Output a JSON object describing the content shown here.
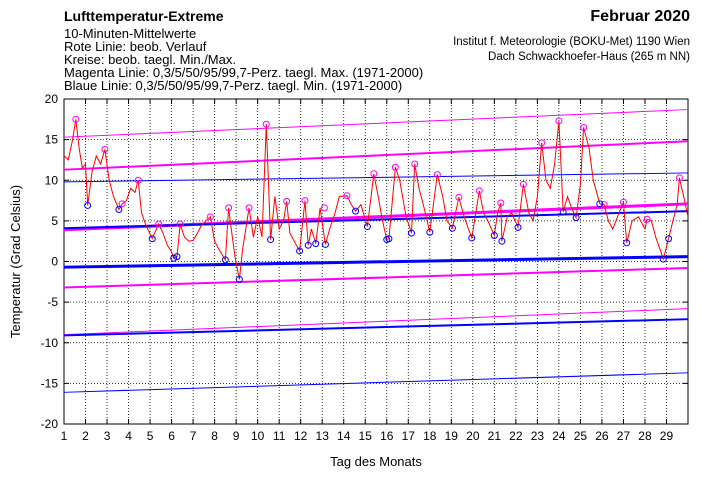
{
  "header": {
    "title": "Lufttemperatur-Extreme",
    "line1": "10-Minuten-Mittelwerte",
    "line2": "Rote Linie: beob. Verlauf",
    "line3": "Kreise: beob. taegl. Min./Max.",
    "line4": "Magenta Linie: 0,3/5/50/95/99,7-Perz. taegl. Max. (1971-2000)",
    "line5": "Blaue Linie: 0,3/5/50/95/99,7-Perz. taegl. Min. (1971-2000)",
    "month": "Februar 2020",
    "institute": "Institut f. Meteorologie (BOKU-Met) 1190 Wien",
    "location": "Dach Schwackhoefer-Haus (265 m NN)"
  },
  "colors": {
    "observed": "#ff0000",
    "max_percentiles": "#ff00ff",
    "min_percentiles": "#0000ff",
    "circle_max": "#ff00ff",
    "circle_min": "#0000ff",
    "grid": "#000000"
  },
  "chart_data": {
    "type": "line",
    "title": "Lufttemperatur-Extreme",
    "xlabel": "Tag des Monats",
    "ylabel": "Temperatur (Grad Celsius)",
    "xlim": [
      1,
      30
    ],
    "ylim": [
      -20,
      20
    ],
    "x_ticks": [
      1,
      2,
      3,
      4,
      5,
      6,
      7,
      8,
      9,
      10,
      11,
      12,
      13,
      14,
      15,
      16,
      17,
      18,
      19,
      20,
      21,
      22,
      23,
      24,
      25,
      26,
      27,
      28,
      29
    ],
    "y_ticks": [
      -20,
      -15,
      -10,
      -5,
      0,
      5,
      10,
      15,
      20
    ],
    "grid": "dotted",
    "percentiles_max": [
      {
        "name": "99,7",
        "x": [
          1,
          30
        ],
        "y": [
          15.3,
          18.7
        ]
      },
      {
        "name": "95",
        "x": [
          1,
          30
        ],
        "y": [
          11.3,
          14.8
        ]
      },
      {
        "name": "50",
        "x": [
          1,
          30
        ],
        "y": [
          3.9,
          7.1
        ]
      },
      {
        "name": "5",
        "x": [
          1,
          30
        ],
        "y": [
          -3.2,
          -0.8
        ]
      },
      {
        "name": "0,3",
        "x": [
          1,
          30
        ],
        "y": [
          -9.0,
          -5.8
        ]
      }
    ],
    "percentiles_min": [
      {
        "name": "99,7",
        "x": [
          1,
          30
        ],
        "y": [
          9.8,
          10.9
        ]
      },
      {
        "name": "95",
        "x": [
          1,
          30
        ],
        "y": [
          4.1,
          6.2
        ]
      },
      {
        "name": "50",
        "x": [
          1,
          30
        ],
        "y": [
          -0.7,
          0.6
        ]
      },
      {
        "name": "5",
        "x": [
          1,
          30
        ],
        "y": [
          -9.1,
          -7.1
        ]
      },
      {
        "name": "0,3",
        "x": [
          1,
          30
        ],
        "y": [
          -16.1,
          -13.7
        ]
      }
    ],
    "daily_max": {
      "x": [
        1.55,
        2.9,
        3.7,
        4.45,
        5.4,
        6.4,
        7.8,
        8.65,
        9.6,
        10.4,
        11.35,
        12.2,
        13.1,
        14.15,
        15.4,
        16.4,
        17.3,
        18.35,
        19.35,
        20.3,
        21.3,
        22.35,
        23.2,
        24.0,
        25.15,
        26.1,
        27.0,
        28.1,
        29.6
      ],
      "y": [
        17.5,
        13.8,
        7.1,
        10.0,
        4.6,
        4.6,
        5.5,
        6.6,
        6.6,
        16.9,
        7.4,
        7.5,
        6.6,
        8.1,
        10.8,
        11.6,
        12.0,
        10.7,
        7.9,
        8.7,
        7.2,
        9.5,
        14.6,
        17.3,
        16.5,
        7.0,
        7.3,
        5.2,
        10.3
      ]
    },
    "daily_min": {
      "x": [
        2.1,
        3.55,
        5.1,
        6.1,
        6.25,
        8.5,
        9.15,
        10.6,
        11.95,
        12.35,
        12.7,
        13.15,
        14.55,
        15.1,
        16.0,
        16.1,
        17.15,
        18.0,
        19.05,
        19.95,
        21.0,
        21.35,
        22.1,
        24.2,
        24.8,
        25.9,
        27.15,
        28.85,
        29.1
      ],
      "y": [
        6.9,
        6.4,
        2.8,
        0.4,
        0.6,
        0.2,
        -2.2,
        2.7,
        1.3,
        2.0,
        2.2,
        2.1,
        6.2,
        4.3,
        2.7,
        2.8,
        3.5,
        3.6,
        4.1,
        2.9,
        3.2,
        2.5,
        4.2,
        6.1,
        5.4,
        7.1,
        2.3,
        0.3,
        2.8
      ]
    },
    "observed": {
      "x": [
        1.0,
        1.2,
        1.4,
        1.55,
        1.7,
        1.85,
        2.0,
        2.1,
        2.3,
        2.5,
        2.7,
        2.9,
        3.1,
        3.3,
        3.55,
        3.7,
        3.9,
        4.1,
        4.3,
        4.45,
        4.6,
        4.8,
        5.1,
        5.4,
        5.6,
        5.8,
        6.0,
        6.1,
        6.25,
        6.4,
        6.6,
        6.8,
        7.0,
        7.2,
        7.4,
        7.6,
        7.8,
        8.0,
        8.2,
        8.35,
        8.5,
        8.65,
        8.8,
        8.95,
        9.15,
        9.3,
        9.45,
        9.6,
        9.8,
        10.0,
        10.2,
        10.4,
        10.6,
        10.8,
        11.0,
        11.2,
        11.35,
        11.5,
        11.7,
        11.95,
        12.2,
        12.35,
        12.5,
        12.7,
        12.9,
        13.15,
        13.35,
        13.6,
        13.8,
        14.15,
        14.35,
        14.55,
        14.8,
        15.1,
        15.4,
        15.6,
        15.8,
        16.0,
        16.1,
        16.4,
        16.6,
        16.9,
        17.15,
        17.3,
        17.5,
        17.7,
        18.0,
        18.35,
        18.6,
        18.8,
        19.05,
        19.35,
        19.6,
        19.8,
        19.95,
        20.3,
        20.5,
        20.7,
        21.0,
        21.15,
        21.3,
        21.35,
        21.6,
        21.8,
        22.1,
        22.35,
        22.6,
        22.8,
        23.0,
        23.2,
        23.4,
        23.6,
        23.8,
        24.0,
        24.2,
        24.4,
        24.6,
        24.8,
        25.0,
        25.15,
        25.4,
        25.6,
        25.9,
        26.1,
        26.3,
        26.5,
        26.8,
        27.0,
        27.15,
        27.4,
        27.7,
        28.0,
        28.1,
        28.3,
        28.5,
        28.7,
        28.85,
        29.1,
        29.3,
        29.5,
        29.6,
        29.8,
        30.0
      ],
      "y": [
        13.0,
        12.5,
        15.0,
        17.5,
        14.0,
        11.5,
        12.0,
        6.9,
        11.0,
        13.0,
        12.0,
        13.8,
        10.0,
        8.0,
        6.4,
        7.1,
        7.5,
        9.0,
        8.5,
        10.0,
        6.0,
        4.5,
        2.8,
        4.6,
        3.5,
        2.0,
        1.2,
        0.4,
        0.6,
        4.6,
        3.0,
        2.5,
        2.6,
        3.5,
        4.5,
        5.0,
        5.5,
        2.5,
        1.5,
        0.8,
        0.2,
        6.6,
        3.5,
        0.5,
        -2.2,
        1.5,
        4.0,
        6.6,
        3.0,
        5.5,
        3.0,
        16.9,
        2.7,
        8.0,
        4.0,
        5.0,
        7.4,
        3.5,
        2.5,
        1.3,
        7.5,
        2.0,
        4.0,
        2.2,
        6.6,
        2.1,
        4.0,
        6.0,
        8.0,
        8.1,
        7.0,
        6.2,
        7.0,
        4.3,
        10.8,
        8.0,
        5.0,
        2.7,
        2.8,
        11.6,
        10.0,
        5.5,
        3.5,
        12.0,
        9.0,
        7.0,
        3.6,
        10.7,
        8.0,
        5.0,
        4.1,
        7.9,
        5.5,
        4.0,
        2.9,
        8.7,
        6.0,
        5.0,
        3.2,
        6.0,
        7.2,
        2.5,
        5.5,
        6.0,
        4.2,
        9.5,
        6.0,
        5.0,
        8.0,
        14.6,
        10.0,
        9.0,
        12.0,
        17.3,
        6.1,
        8.0,
        6.5,
        5.4,
        9.5,
        16.5,
        14.0,
        10.0,
        7.1,
        7.0,
        5.0,
        4.0,
        6.0,
        7.3,
        2.3,
        5.0,
        5.5,
        4.0,
        5.2,
        5.0,
        3.0,
        1.5,
        0.3,
        2.8,
        5.0,
        7.0,
        10.3,
        8.0,
        5.5
      ]
    }
  }
}
